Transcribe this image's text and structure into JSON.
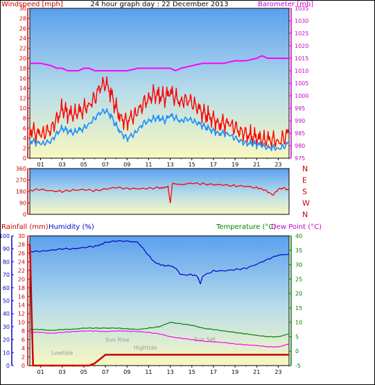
{
  "chart_data": [
    {
      "type": "line",
      "title": "24 hour graph day : 22 December 2013",
      "ylabel_left": "Windspeed [mph]",
      "ylabel_right": "Barometer [mb]",
      "x_ticks": [
        "01",
        "03",
        "05",
        "07",
        "09",
        "11",
        "13",
        "15",
        "17",
        "19",
        "21",
        "23"
      ],
      "x_range": [
        0,
        24
      ],
      "ylim_left": [
        0,
        30
      ],
      "yticks_left": [
        0,
        2,
        4,
        6,
        8,
        10,
        12,
        14,
        16,
        18,
        20,
        22,
        24,
        26,
        28,
        30
      ],
      "ylim_right": [
        975,
        1035
      ],
      "yticks_right": [
        975,
        980,
        985,
        990,
        995,
        1000,
        1005,
        1010,
        1015,
        1020,
        1025,
        1030,
        1035
      ],
      "colors": {
        "gust": "#ff0000",
        "avg": "#1e90ff",
        "baro": "#ff00ff",
        "left_axis": "#cc0000",
        "right_axis": "#cc00cc"
      },
      "series": [
        {
          "axis": "left",
          "color": "gust",
          "x": [
            0,
            0.5,
            1,
            1.5,
            2,
            2.5,
            3,
            3.5,
            4,
            4.5,
            5,
            5.5,
            6,
            6.5,
            7,
            7.5,
            8,
            8.5,
            9,
            9.5,
            10,
            10.5,
            11,
            11.5,
            12,
            12.5,
            13,
            13.5,
            14,
            14.5,
            15,
            15.5,
            16,
            16.5,
            17,
            17.5,
            18,
            18.5,
            19,
            19.5,
            20,
            20.5,
            21,
            21.5,
            22,
            22.5,
            23,
            23.5,
            24
          ],
          "values": [
            6,
            5,
            4.5,
            5,
            6,
            8,
            10,
            9,
            8.5,
            9,
            10,
            11,
            12,
            14,
            15,
            13,
            10,
            8,
            7.5,
            8,
            9,
            11,
            12,
            13,
            12.5,
            12,
            13,
            12,
            11.5,
            12,
            11,
            10,
            9,
            8.5,
            8,
            7,
            7,
            6.5,
            6,
            5.5,
            5,
            4.5,
            4,
            3.5,
            3.5,
            4,
            3.5,
            4,
            5
          ]
        },
        {
          "axis": "left",
          "color": "avg",
          "x": [
            0,
            0.5,
            1,
            1.5,
            2,
            2.5,
            3,
            3.5,
            4,
            4.5,
            5,
            5.5,
            6,
            6.5,
            7,
            7.5,
            8,
            8.5,
            9,
            9.5,
            10,
            10.5,
            11,
            11.5,
            12,
            12.5,
            13,
            13.5,
            14,
            14.5,
            15,
            15.5,
            16,
            16.5,
            17,
            17.5,
            18,
            18.5,
            19,
            19.5,
            20,
            20.5,
            21,
            21.5,
            22,
            22.5,
            23,
            23.5,
            24
          ],
          "values": [
            3.5,
            3.2,
            2.8,
            3,
            3.5,
            5,
            6,
            5.5,
            5,
            5.5,
            6,
            7,
            8,
            9,
            9.5,
            8.5,
            6.5,
            5,
            4,
            4.5,
            5.5,
            7,
            7.5,
            8,
            8,
            7.5,
            8.5,
            8,
            7.5,
            8,
            7.5,
            7,
            6.5,
            6,
            5.5,
            5,
            5,
            4.5,
            4,
            3.5,
            3,
            3,
            2.8,
            2.5,
            2,
            2.2,
            2,
            2.3,
            3
          ]
        },
        {
          "axis": "right",
          "color": "baro",
          "x": [
            0,
            1,
            2,
            2.5,
            3,
            3.5,
            4,
            4.5,
            5,
            5.5,
            6,
            7,
            8,
            9,
            10,
            11,
            12,
            13,
            13.5,
            14,
            15,
            16,
            17,
            18,
            19,
            20,
            21,
            21.5,
            22,
            23,
            24
          ],
          "values": [
            1013,
            1013,
            1012,
            1011,
            1011,
            1010,
            1010,
            1010,
            1011,
            1011,
            1010,
            1010,
            1010,
            1010,
            1011,
            1011,
            1011,
            1011,
            1010,
            1011,
            1012,
            1013,
            1013,
            1013,
            1014,
            1014,
            1015,
            1016,
            1015,
            1015,
            1015
          ]
        }
      ]
    },
    {
      "type": "line",
      "ylim_left": [
        0,
        360
      ],
      "yticks_left": [
        0,
        90,
        180,
        270,
        360
      ],
      "direction_labels": [
        "N",
        "W",
        "S",
        "E",
        "N"
      ],
      "colors": {
        "dir": "#ff0000",
        "left_axis": "#cc0000"
      },
      "series": [
        {
          "axis": "left",
          "color": "dir",
          "x": [
            0,
            1,
            2,
            3,
            4,
            5,
            6,
            7,
            8,
            9,
            10,
            11,
            12,
            12.8,
            13,
            13.2,
            14,
            15,
            16,
            17,
            18,
            19,
            20,
            21,
            21.5,
            22,
            22.5,
            23,
            23.5,
            24
          ],
          "values": [
            190,
            195,
            185,
            180,
            190,
            195,
            185,
            200,
            210,
            205,
            200,
            205,
            210,
            215,
            90,
            240,
            235,
            245,
            240,
            235,
            230,
            225,
            220,
            210,
            200,
            180,
            150,
            195,
            210,
            190
          ]
        }
      ]
    },
    {
      "type": "line",
      "ylabel_rain": "Rainfall (mm)",
      "ylabel_hum": "Humidity (%)",
      "ylabel_temp": "Temperature (°C)",
      "ylabel_dew": "Dew Point (°C)",
      "ylim_rain": [
        0,
        30
      ],
      "yticks_rain": [
        0,
        2,
        4,
        6,
        8,
        10,
        12,
        14,
        16,
        18,
        20,
        22,
        24,
        26,
        28,
        30
      ],
      "ylim_hum": [
        0,
        100
      ],
      "yticks_hum": [
        0,
        10,
        20,
        30,
        40,
        50,
        60,
        70,
        80,
        90,
        100
      ],
      "ylim_temp": [
        -5,
        40
      ],
      "yticks_temp": [
        -5,
        0,
        5,
        10,
        15,
        20,
        25,
        30,
        35,
        40
      ],
      "colors": {
        "rain": "#cc0000",
        "hum": "#0000cc",
        "temp": "#008000",
        "dew": "#ff00ff",
        "rain_axis": "#cc0000",
        "hum_axis": "#0000cc",
        "temp_axis": "#008000"
      },
      "annotations": [
        {
          "text": "Lowtide",
          "x": 3.0,
          "y": 2.5
        },
        {
          "text": "Sun Rise",
          "x": 8.1,
          "y": 5.5
        },
        {
          "text": "Hightide",
          "x": 10.7,
          "y": 3.7
        },
        {
          "text": "Sun Set",
          "x": 16.2,
          "y": 5.6
        }
      ],
      "series": [
        {
          "axis": "rain",
          "color": "rain",
          "x": [
            0,
            0.3,
            0.4,
            5.5,
            6,
            6.5,
            7,
            23.5,
            24
          ],
          "values": [
            28,
            0,
            0,
            0,
            0.5,
            1.5,
            2.5,
            2.5,
            2.5
          ]
        },
        {
          "axis": "hum",
          "color": "hum",
          "x": [
            0,
            1,
            2,
            3,
            4,
            5,
            6,
            6.5,
            7,
            8,
            9,
            10,
            11,
            11.5,
            12,
            12.5,
            13,
            13.5,
            14,
            15,
            15.5,
            15.8,
            16,
            17,
            18,
            19,
            20,
            21,
            22,
            23,
            24
          ],
          "values": [
            88,
            88,
            89,
            90,
            90,
            91,
            92,
            93,
            95,
            96,
            96,
            95,
            85,
            80,
            78,
            77,
            77,
            75,
            70,
            70,
            69,
            63,
            69,
            73,
            73,
            74,
            75,
            78,
            82,
            85,
            86
          ]
        },
        {
          "axis": "temp",
          "color": "temp",
          "x": [
            0,
            1,
            2,
            3,
            4,
            5,
            6,
            7,
            8,
            9,
            10,
            11,
            12,
            13,
            14,
            15,
            16,
            17,
            18,
            19,
            20,
            21,
            22,
            23,
            24
          ],
          "values": [
            7.5,
            7.5,
            7.2,
            7.5,
            7.6,
            8,
            8,
            8,
            8,
            7.8,
            7.5,
            8,
            8.5,
            10,
            9.5,
            9,
            8,
            7.5,
            7,
            6.5,
            6,
            5.5,
            5,
            5,
            6
          ]
        },
        {
          "axis": "temp",
          "color": "dew",
          "x": [
            0,
            1,
            2,
            3,
            4,
            5,
            6,
            7,
            8,
            9,
            10,
            11,
            12,
            13,
            14,
            15,
            16,
            17,
            18,
            19,
            20,
            21,
            22,
            23,
            24
          ],
          "values": [
            6.5,
            6.5,
            6.2,
            6.5,
            6.8,
            7,
            7,
            6.8,
            7,
            7,
            6.8,
            6.5,
            6,
            5,
            4.5,
            4,
            3.5,
            3.2,
            3,
            2.5,
            2.2,
            2,
            1.5,
            1.5,
            2.5
          ]
        }
      ]
    }
  ]
}
